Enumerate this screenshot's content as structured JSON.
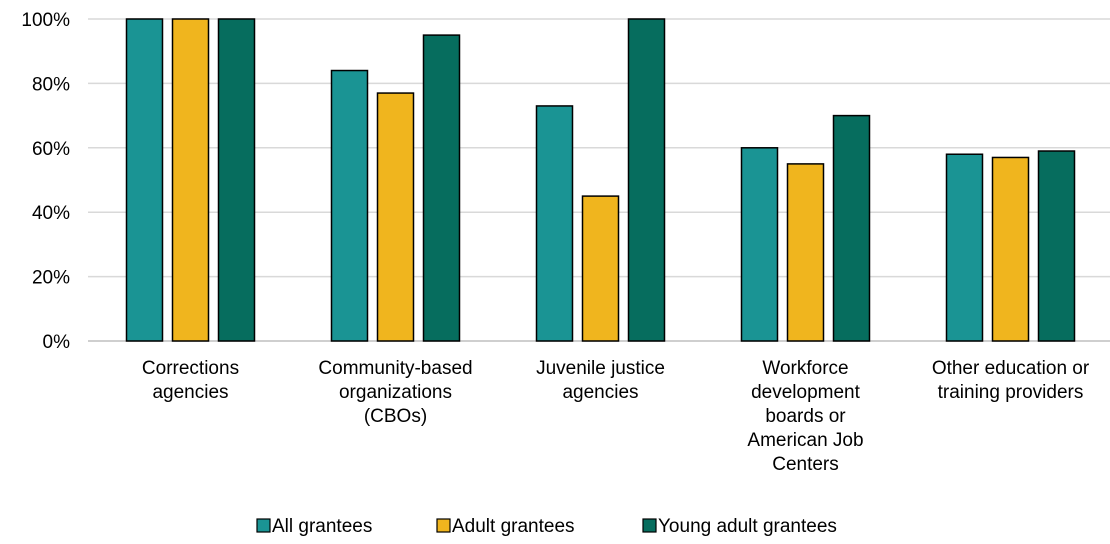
{
  "chart_data": {
    "type": "bar",
    "categories": [
      [
        "Corrections",
        "agencies"
      ],
      [
        "Community-based",
        "organizations",
        "(CBOs)"
      ],
      [
        "Juvenile justice",
        "agencies"
      ],
      [
        "Workforce",
        "development",
        "boards or",
        "American Job",
        "Centers"
      ],
      [
        "Other education or",
        "training providers"
      ]
    ],
    "series": [
      {
        "name": "All grantees",
        "color": "#1a9494",
        "values": [
          100,
          84,
          73,
          60,
          58
        ]
      },
      {
        "name": "Adult grantees",
        "color": "#f0b51e",
        "values": [
          100,
          77,
          45,
          55,
          57
        ]
      },
      {
        "name": "Young adult grantees",
        "color": "#066d5e",
        "values": [
          100,
          95,
          100,
          70,
          59
        ]
      }
    ],
    "ylim": [
      0,
      100
    ],
    "yticks": [
      0,
      20,
      40,
      60,
      80,
      100
    ],
    "ytick_format": "%",
    "grid": true,
    "legend_position": "bottom",
    "title": "",
    "xlabel": "",
    "ylabel": ""
  }
}
